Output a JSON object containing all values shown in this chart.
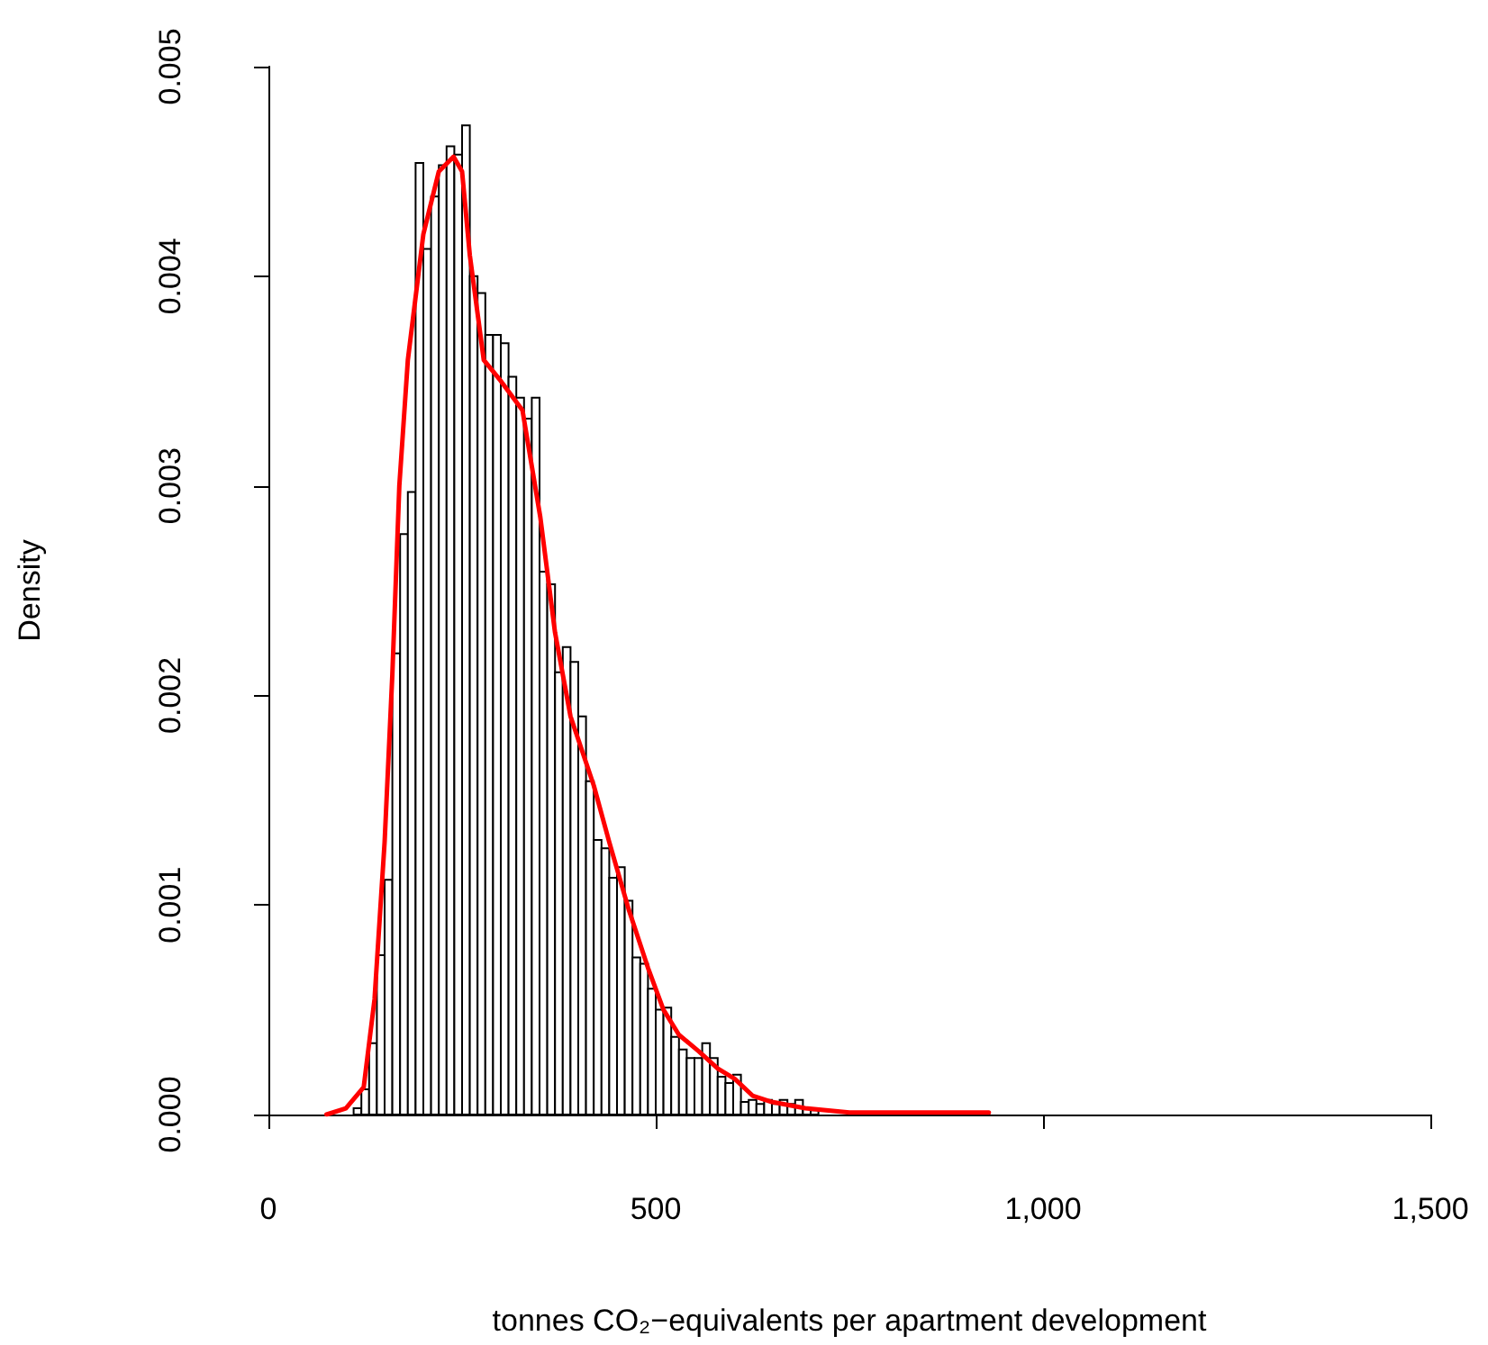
{
  "chart_data": {
    "type": "histogram",
    "xlabel": "tonnes CO₂−equivalents per apartment development",
    "ylabel": "Density",
    "xlim": [
      0,
      1500
    ],
    "ylim": [
      0,
      0.005
    ],
    "xticks": [
      0,
      500,
      {
        "value": 1000,
        "label": "1,000"
      },
      {
        "value": 1500,
        "label": "1,500"
      }
    ],
    "yticks": [
      {
        "value": 0,
        "label": "0.000"
      },
      {
        "value": 0.001,
        "label": "0.001"
      },
      {
        "value": 0.002,
        "label": "0.002"
      },
      {
        "value": 0.003,
        "label": "0.003"
      },
      {
        "value": 0.004,
        "label": "0.004"
      },
      {
        "value": 0.005,
        "label": "0.005"
      }
    ],
    "grid": false,
    "series": [
      {
        "type": "histogram",
        "color": "#ffffff",
        "bins": [
          110,
          120,
          130,
          140,
          150,
          160,
          170,
          180,
          190,
          200,
          210,
          220,
          230,
          240,
          250,
          260,
          270,
          280,
          290,
          300,
          310,
          320,
          330,
          340,
          350,
          360,
          370,
          380,
          390,
          400,
          410,
          420,
          430,
          440,
          450,
          460,
          470,
          480,
          490,
          500,
          510,
          520,
          530,
          540,
          550,
          560,
          570,
          580,
          590,
          600,
          610,
          620,
          630,
          640,
          650,
          660,
          670,
          680,
          690,
          700,
          710,
          720,
          730,
          740,
          750,
          760,
          770,
          780,
          790,
          800,
          810,
          820,
          830,
          840,
          850,
          860,
          870,
          880,
          890,
          900,
          910,
          920,
          930
        ],
        "values": [
          3e-05,
          0.00012,
          0.00034,
          0.00076,
          0.00112,
          0.0022,
          0.00277,
          0.00297,
          0.00454,
          0.00413,
          0.00438,
          0.00453,
          0.00462,
          0.00458,
          0.00472,
          0.004,
          0.00392,
          0.00372,
          0.00372,
          0.00368,
          0.00352,
          0.00342,
          0.00332,
          0.00342,
          0.00259,
          0.00253,
          0.00211,
          0.00223,
          0.00216,
          0.0019,
          0.00159,
          0.00131,
          0.00127,
          0.00113,
          0.00118,
          0.00102,
          0.00075,
          0.00072,
          0.0006,
          0.0005,
          0.00051,
          0.00037,
          0.00031,
          0.00027,
          0.00027,
          0.00034,
          0.00027,
          0.00018,
          0.00015,
          0.00019,
          6e-05,
          7e-05,
          5e-05,
          7e-05,
          5e-05,
          7e-05,
          5e-05,
          7e-05,
          3e-05,
          2e-05,
          null,
          null,
          0,
          null,
          0,
          0,
          0,
          0,
          1e-05,
          0,
          0,
          0,
          0,
          0,
          0,
          0,
          0,
          0,
          1e-05,
          0,
          0,
          1e-05
        ]
      },
      {
        "type": "line",
        "color": "#ff0000",
        "line_style": "solid",
        "marker": "none",
        "x": [
          75,
          100,
          123,
          137,
          150,
          160,
          169,
          180,
          200,
          220,
          239,
          250,
          260,
          278,
          300,
          328,
          351,
          370,
          390,
          420,
          440,
          465,
          490,
          510,
          530,
          556,
          580,
          602,
          625,
          650,
          693,
          750,
          800,
          930
        ],
        "values": [
          0,
          3e-05,
          0.00013,
          0.00055,
          0.0013,
          0.0021,
          0.003,
          0.0036,
          0.0042,
          0.0045,
          0.00457,
          0.0045,
          0.0041,
          0.0036,
          0.0035,
          0.00336,
          0.00285,
          0.0023,
          0.0019,
          0.00157,
          0.0013,
          0.00098,
          0.0007,
          0.0005,
          0.00038,
          0.0003,
          0.00022,
          0.00017,
          9e-05,
          6e-05,
          3e-05,
          1e-05,
          1e-05,
          1e-05
        ]
      }
    ]
  }
}
